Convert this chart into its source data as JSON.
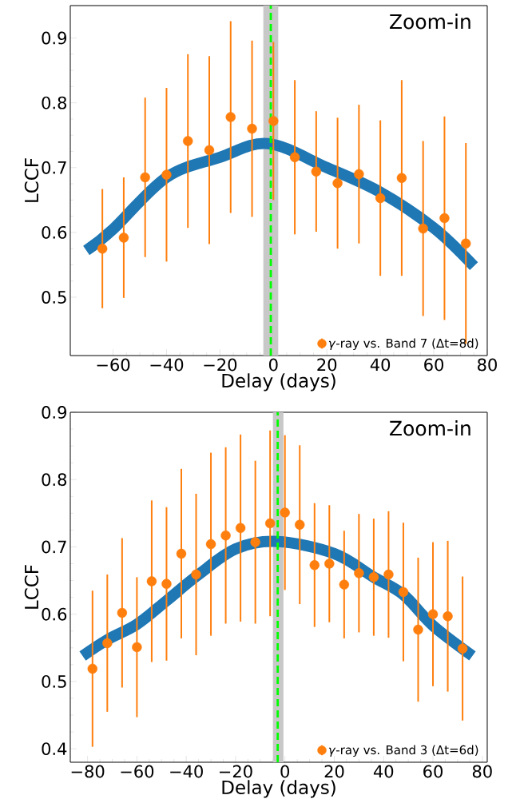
{
  "chart_data": [
    {
      "type": "scatter",
      "xlabel": "Delay (days)",
      "ylabel": "LCCF",
      "annotations": [
        "Zoom-in"
      ],
      "xlim": [
        -76,
        80
      ],
      "ylim": [
        0.41,
        0.95
      ],
      "xticks": [
        {
          "value": -60,
          "label": "−60"
        },
        {
          "value": -40,
          "label": "−40"
        },
        {
          "value": -20,
          "label": "−20"
        },
        0,
        20,
        40,
        60,
        80
      ],
      "yticks": [
        0.5,
        0.6,
        0.7,
        0.8,
        0.9
      ],
      "legend": "bottom right",
      "ref_lines": [
        {
          "axis": "x",
          "value": -1.0,
          "color": "#00ff00",
          "line_style": "dashed"
        }
      ],
      "bands": [
        {
          "axis": "x",
          "from": -3.8,
          "to": 1.8,
          "color": "#c8c8c8"
        }
      ],
      "series": [
        {
          "type": "line",
          "color": "#1f77b4",
          "marker": "none",
          "line_style": "solid",
          "x": [
            -70,
            -60,
            -40,
            -20,
            -2,
            20,
            40,
            60,
            75
          ],
          "values": [
            0.572,
            0.605,
            0.685,
            0.716,
            0.737,
            0.7,
            0.662,
            0.607,
            0.548
          ]
        },
        {
          "type": "scatter",
          "name": "*γ*-ray vs. Band 7 (Δt=8d)",
          "color": "#ff7f0e",
          "marker": "circle",
          "x": [
            -64,
            -56,
            -48,
            -40,
            -32,
            -24,
            -16,
            -8,
            0,
            8,
            16,
            24,
            32,
            40,
            48,
            56,
            64,
            72
          ],
          "values": [
            0.575,
            0.592,
            0.685,
            0.689,
            0.741,
            0.727,
            0.778,
            0.76,
            0.772,
            0.716,
            0.694,
            0.676,
            0.69,
            0.653,
            0.684,
            0.606,
            0.622,
            0.583
          ],
          "errors": [
            0.092,
            0.093,
            0.123,
            0.134,
            0.134,
            0.145,
            0.148,
            0.136,
            0.122,
            0.119,
            0.093,
            0.101,
            0.107,
            0.12,
            0.151,
            0.135,
            0.157,
            0.155
          ]
        }
      ]
    },
    {
      "type": "scatter",
      "xlabel": "Delay (days)",
      "ylabel": "LCCF",
      "annotations": [
        "Zoom-in"
      ],
      "xlim": [
        -87,
        82
      ],
      "ylim": [
        0.38,
        0.9
      ],
      "xticks": [
        {
          "value": -80,
          "label": "−80"
        },
        {
          "value": -60,
          "label": "−60"
        },
        {
          "value": -40,
          "label": "−40"
        },
        {
          "value": -20,
          "label": "−20"
        },
        0,
        20,
        40,
        60,
        80
      ],
      "yticks": [
        0.4,
        0.5,
        0.6,
        0.7,
        0.8,
        0.9
      ],
      "legend": "bottom right",
      "ref_lines": [
        {
          "axis": "x",
          "value": -2.9,
          "color": "#00ff00",
          "line_style": "dashed"
        }
      ],
      "bands": [
        {
          "axis": "x",
          "from": -4.9,
          "to": -0.6,
          "color": "#c8c8c8"
        }
      ],
      "series": [
        {
          "type": "line",
          "color": "#1f77b4",
          "marker": "none",
          "line_style": "solid",
          "x": [
            -82,
            -72,
            -60,
            -48,
            -36,
            -20,
            -3,
            20,
            36,
            48,
            60,
            76
          ],
          "values": [
            0.538,
            0.562,
            0.585,
            0.62,
            0.656,
            0.697,
            0.708,
            0.69,
            0.655,
            0.629,
            0.583,
            0.538
          ]
        },
        {
          "type": "scatter",
          "name": "*γ*-ray vs. Band 3 (Δt=6d)",
          "color": "#ff7f0e",
          "marker": "circle",
          "x": [
            -78,
            -72,
            -66,
            -60,
            -54,
            -48,
            -42,
            -36,
            -30,
            -24,
            -18,
            -12,
            -6,
            0,
            6,
            12,
            18,
            24,
            30,
            36,
            42,
            48,
            54,
            60,
            66,
            72
          ],
          "values": [
            0.519,
            0.557,
            0.602,
            0.551,
            0.649,
            0.645,
            0.69,
            0.659,
            0.704,
            0.717,
            0.728,
            0.707,
            0.735,
            0.751,
            0.733,
            0.673,
            0.675,
            0.644,
            0.661,
            0.655,
            0.659,
            0.633,
            0.577,
            0.6,
            0.597,
            0.549
          ],
          "errors": [
            0.116,
            0.102,
            0.111,
            0.104,
            0.12,
            0.114,
            0.126,
            0.12,
            0.136,
            0.131,
            0.139,
            0.121,
            0.138,
            0.115,
            0.118,
            0.092,
            0.087,
            0.08,
            0.088,
            0.087,
            0.094,
            0.103,
            0.107,
            0.107,
            0.112,
            0.107
          ]
        }
      ]
    }
  ]
}
